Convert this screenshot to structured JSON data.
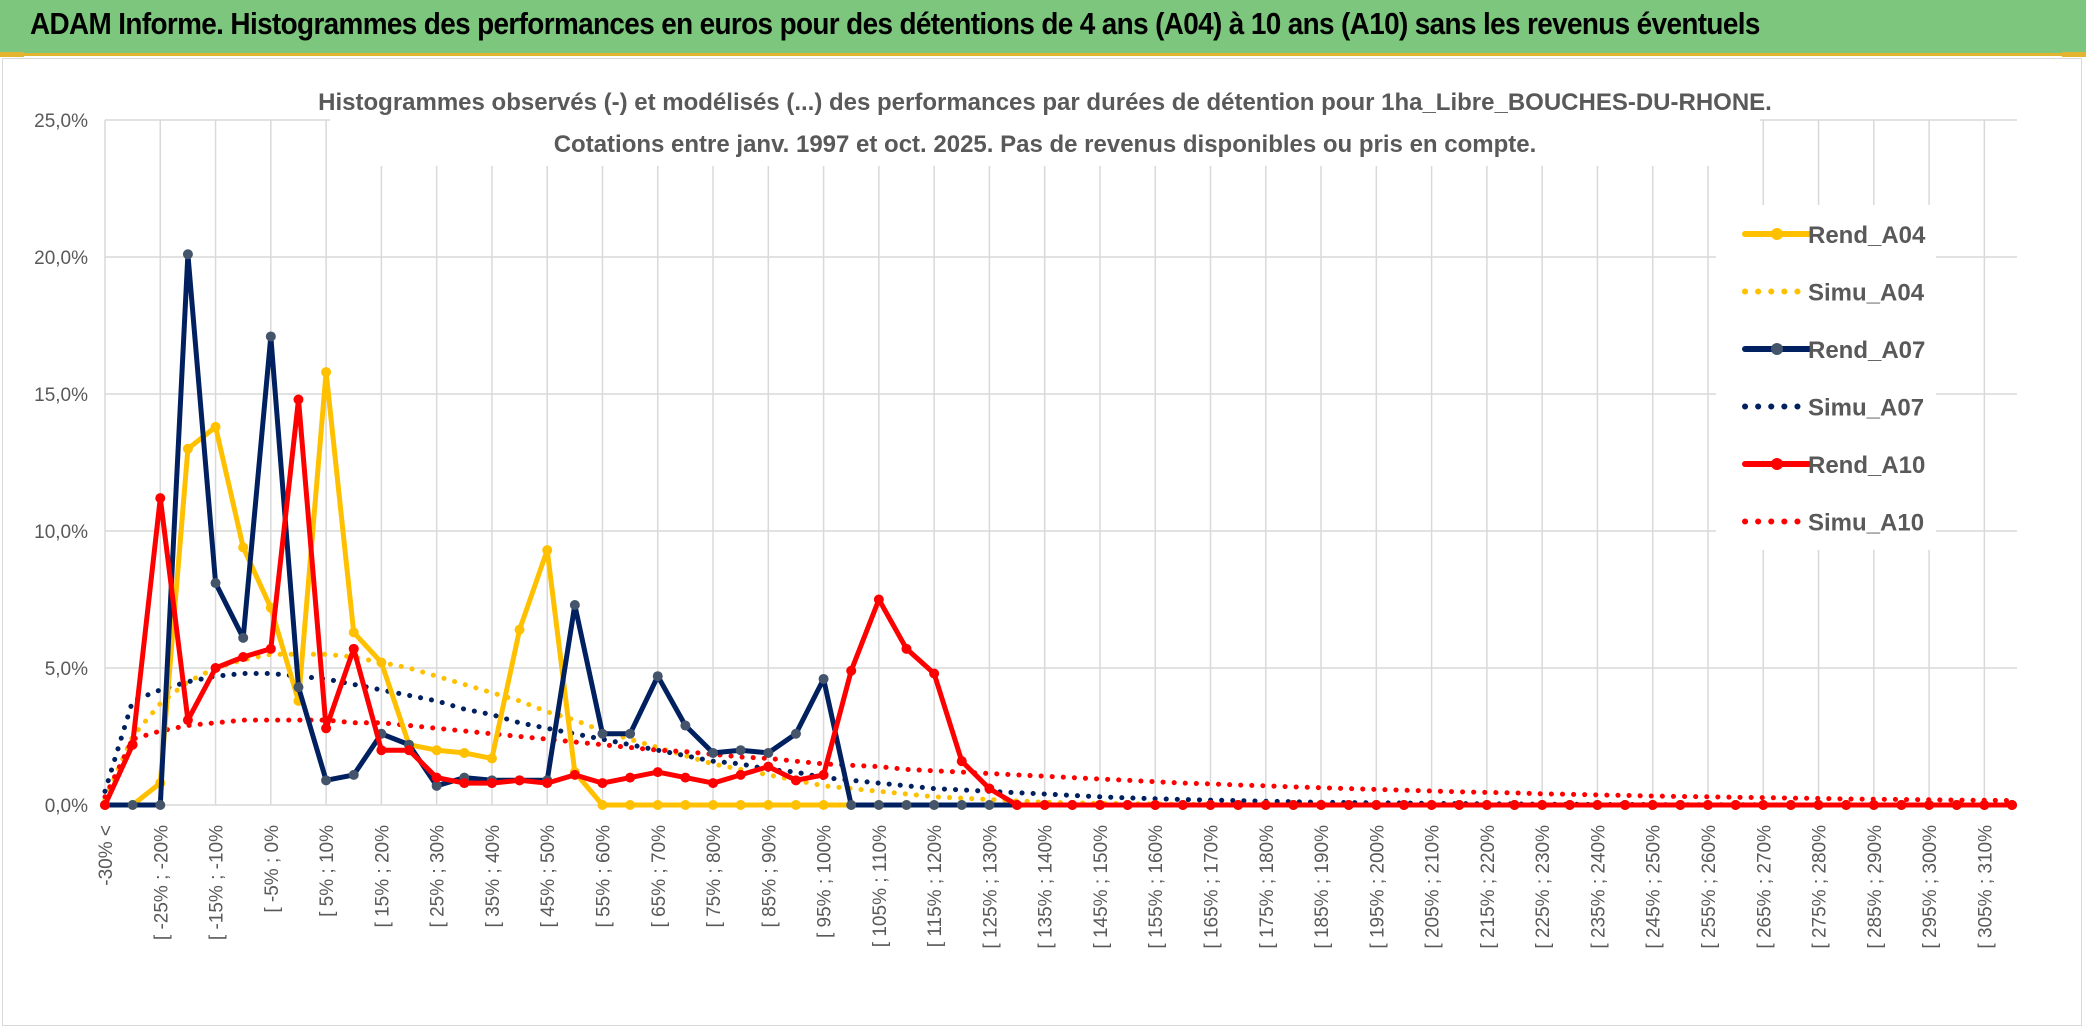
{
  "header": {
    "title": "ADAM Informe. Histogrammes des performances en euros pour des détentions de 4 ans (A04) à 10 ans (A10) sans les revenus éventuels"
  },
  "chart_data": {
    "type": "line",
    "title_line1": "Histogrammes observés (-) et modélisés (...) des performances par durées de détention pour 1ha_Libre_BOUCHES-DU-RHONE.",
    "title_line2": "Cotations entre janv. 1997 et oct. 2025. Pas de revenus disponibles ou pris en compte.",
    "ylim": [
      0,
      25
    ],
    "yticks": [
      0,
      5,
      10,
      15,
      20,
      25
    ],
    "ytick_labels": [
      "0,0%",
      "5,0%",
      "10,0%",
      "15,0%",
      "20,0%",
      "25,0%"
    ],
    "categories_count": 70,
    "category_labels": [
      "-30% <",
      "[ -25% ; -20%",
      "[ -15% ; -10%",
      "[ -5% ; 0%",
      "[ 5% ; 10%",
      "[ 15% ; 20%",
      "[ 25% ; 30%",
      "[ 35% ; 40%",
      "[ 45% ; 50%",
      "[ 55% ; 60%",
      "[ 65% ; 70%",
      "[ 75% ; 80%",
      "[ 85% ; 90%",
      "[ 95% ; 100%",
      "[ 105% ; 110%",
      "[ 115% ; 120%",
      "[ 125% ; 130%",
      "[ 135% ; 140%",
      "[ 145% ; 150%",
      "[ 155% ; 160%",
      "[ 165% ; 170%",
      "[ 175% ; 180%",
      "[ 185% ; 190%",
      "[ 195% ; 200%",
      "[ 205% ; 210%",
      "[ 215% ; 220%",
      "[ 225% ; 230%",
      "[ 235% ; 240%",
      "[ 245% ; 250%",
      "[ 255% ; 260%",
      "[ 265% ; 270%",
      "[ 275% ; 280%",
      "[ 285% ; 290%",
      "[ 295% ; 300%",
      "[ 305% ; 310%"
    ],
    "label_step": 2,
    "series": [
      {
        "name": "Rend_A04",
        "style": "solid",
        "color": "#ffc000",
        "markers": true,
        "values": [
          0,
          0,
          0.8,
          13,
          13.8,
          9.4,
          7.2,
          3.8,
          15.8,
          6.3,
          5.2,
          2.2,
          2,
          1.9,
          1.7,
          6.4,
          9.3,
          1.2,
          0,
          0,
          0,
          0,
          0,
          0,
          0,
          0,
          0,
          0,
          0,
          0,
          0,
          0,
          0,
          0,
          0,
          0,
          0,
          0,
          0,
          0,
          0,
          0,
          0,
          0,
          0,
          0,
          0,
          0,
          0,
          0,
          0,
          0,
          0,
          0,
          0,
          0,
          0,
          0,
          0,
          0,
          0,
          0,
          0,
          0,
          0,
          0,
          0,
          0,
          0,
          0
        ]
      },
      {
        "name": "Simu_A04",
        "style": "dotted",
        "color": "#ffc000",
        "markers": false,
        "values": [
          0.2,
          2.5,
          3.7,
          4.5,
          5.0,
          5.3,
          5.5,
          5.5,
          5.5,
          5.4,
          5.2,
          5.0,
          4.7,
          4.4,
          4.1,
          3.8,
          3.4,
          3.1,
          2.7,
          2.4,
          2.1,
          1.8,
          1.5,
          1.3,
          1.1,
          0.9,
          0.7,
          0.6,
          0.5,
          0.4,
          0.3,
          0.25,
          0.2,
          0.15,
          0.1,
          0.08,
          0.06,
          0.05,
          0.04,
          0.03,
          0.02,
          0.02,
          0.01,
          0.01,
          0.01,
          0,
          0,
          0,
          0,
          0,
          0,
          0,
          0,
          0,
          0,
          0,
          0,
          0,
          0,
          0,
          0,
          0,
          0,
          0,
          0,
          0,
          0,
          0,
          0,
          0
        ]
      },
      {
        "name": "Rend_A07",
        "style": "solid",
        "color": "#002060",
        "markers": true,
        "values": [
          0,
          0,
          0,
          20.1,
          8.1,
          6.1,
          17.1,
          4.3,
          0.9,
          1.1,
          2.6,
          2.2,
          0.7,
          1.0,
          0.9,
          0.9,
          0.9,
          7.3,
          2.6,
          2.6,
          4.7,
          2.9,
          1.9,
          2.0,
          1.9,
          2.6,
          4.6,
          0,
          0,
          0,
          0,
          0,
          0,
          0,
          0,
          0,
          0,
          0,
          0,
          0,
          0,
          0,
          0,
          0,
          0,
          0,
          0,
          0,
          0,
          0,
          0,
          0,
          0,
          0,
          0,
          0,
          0,
          0,
          0,
          0,
          0,
          0,
          0,
          0,
          0,
          0,
          0,
          0,
          0,
          0
        ]
      },
      {
        "name": "Simu_A07",
        "style": "dotted",
        "color": "#002060",
        "markers": false,
        "values": [
          0.5,
          3.8,
          4.2,
          4.5,
          4.7,
          4.8,
          4.8,
          4.7,
          4.6,
          4.4,
          4.2,
          4.0,
          3.8,
          3.5,
          3.3,
          3.0,
          2.8,
          2.6,
          2.4,
          2.2,
          2.0,
          1.8,
          1.6,
          1.5,
          1.3,
          1.2,
          1.0,
          0.9,
          0.8,
          0.7,
          0.6,
          0.55,
          0.5,
          0.45,
          0.4,
          0.35,
          0.3,
          0.26,
          0.23,
          0.2,
          0.18,
          0.16,
          0.14,
          0.12,
          0.1,
          0.09,
          0.08,
          0.07,
          0.06,
          0.05,
          0.04,
          0.04,
          0.03,
          0.03,
          0.02,
          0.02,
          0.02,
          0.01,
          0.01,
          0.01,
          0.01,
          0,
          0,
          0,
          0,
          0,
          0,
          0,
          0,
          0
        ]
      },
      {
        "name": "Rend_A10",
        "style": "solid",
        "color": "#ff0000",
        "markers": true,
        "values": [
          0,
          2.2,
          11.2,
          3.1,
          5.0,
          5.4,
          5.7,
          14.8,
          2.8,
          5.7,
          2.0,
          2.0,
          1.0,
          0.8,
          0.8,
          0.9,
          0.8,
          1.1,
          0.8,
          1.0,
          1.2,
          1.0,
          0.8,
          1.1,
          1.4,
          0.9,
          1.1,
          4.9,
          7.5,
          5.7,
          4.8,
          1.6,
          0.6,
          0,
          0,
          0,
          0,
          0,
          0,
          0,
          0,
          0,
          0,
          0,
          0,
          0,
          0,
          0,
          0,
          0,
          0,
          0,
          0,
          0,
          0,
          0,
          0,
          0,
          0,
          0,
          0,
          0,
          0,
          0,
          0,
          0,
          0,
          0,
          0,
          0
        ]
      },
      {
        "name": "Simu_A10",
        "style": "dotted",
        "color": "#ff0000",
        "markers": false,
        "values": [
          0.3,
          2.4,
          2.7,
          2.9,
          3.0,
          3.1,
          3.1,
          3.1,
          3.1,
          3.0,
          3.0,
          2.9,
          2.8,
          2.7,
          2.6,
          2.5,
          2.4,
          2.3,
          2.2,
          2.1,
          2.0,
          1.95,
          1.85,
          1.75,
          1.7,
          1.6,
          1.5,
          1.45,
          1.4,
          1.3,
          1.25,
          1.2,
          1.15,
          1.1,
          1.05,
          1.0,
          0.95,
          0.9,
          0.85,
          0.8,
          0.77,
          0.73,
          0.7,
          0.66,
          0.63,
          0.6,
          0.57,
          0.54,
          0.51,
          0.48,
          0.46,
          0.44,
          0.41,
          0.39,
          0.37,
          0.35,
          0.33,
          0.31,
          0.3,
          0.28,
          0.27,
          0.25,
          0.24,
          0.22,
          0.21,
          0.2,
          0.19,
          0.18,
          0.17,
          0.16
        ]
      }
    ],
    "legend": [
      "Rend_A04",
      "Simu_A04",
      "Rend_A07",
      "Simu_A07",
      "Rend_A10",
      "Simu_A10"
    ],
    "legend_position": "right"
  }
}
